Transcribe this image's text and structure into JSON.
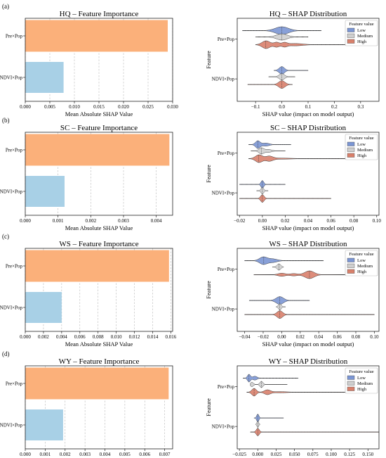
{
  "colors": {
    "low": "#7b96d4",
    "medium": "#cfcfcf",
    "high": "#d9806b",
    "bar_top": "#fbb07a",
    "bar_bottom": "#a8d0e6"
  },
  "chart_data": [
    {
      "panel_label": "(a)",
      "importance": {
        "type": "bar",
        "title": "HQ – Feature Importance",
        "xlabel": "Mean Absolute SHAP Value",
        "categories": [
          "Pre×Pop",
          "NDVI×Pop"
        ],
        "values": [
          0.029,
          0.0078
        ],
        "xlim": [
          0,
          0.03
        ],
        "ticks": [
          0,
          0.005,
          0.01,
          0.015,
          0.02,
          0.025,
          0.03
        ],
        "tick_labels": [
          "0.000",
          "0.005",
          "0.010",
          "0.015",
          "0.020",
          "0.025",
          "0.030"
        ],
        "grid": true
      },
      "shap": {
        "type": "violin",
        "title": "HQ – SHAP Distribution",
        "xlabel": "SHAP value (impact on model output)",
        "ylabel": "Feature",
        "categories": [
          "Pre×Pop",
          "NDVI×Pop"
        ],
        "xlim": [
          -0.17,
          0.37
        ],
        "ticks": [
          -0.1,
          0,
          0.1,
          0.2,
          0.3
        ],
        "tick_labels": [
          "−0.1",
          "0.0",
          "0.1",
          "0.2",
          "0.3"
        ],
        "legend": {
          "title": "Feature value",
          "entries": [
            "Low",
            "Medium",
            "High"
          ],
          "position": "top-right"
        },
        "features": [
          {
            "feature": "Pre×Pop",
            "groups": [
              {
                "name": "Low",
                "range": [
                  -0.15,
                  0.15
                ],
                "peaks": [
                  [
                    0,
                    0.025,
                    1
                  ]
                ]
              },
              {
                "name": "Medium",
                "range": [
                  -0.1,
                  0.1
                ],
                "peaks": [
                  [
                    0,
                    0.02,
                    1
                  ]
                ]
              },
              {
                "name": "High",
                "range": [
                  -0.1,
                  0.35
                ],
                "peaks": [
                  [
                    -0.06,
                    0.015,
                    1
                  ],
                  [
                    -0.02,
                    0.01,
                    0.6
                  ],
                  [
                    0.01,
                    0.01,
                    0.5
                  ],
                  [
                    0.05,
                    0.03,
                    0.3
                  ]
                ]
              }
            ]
          },
          {
            "feature": "NDVI×Pop",
            "groups": [
              {
                "name": "Low",
                "range": [
                  -0.03,
                  0.1
                ],
                "peaks": [
                  [
                    0,
                    0.01,
                    1
                  ]
                ]
              },
              {
                "name": "Medium",
                "range": [
                  -0.05,
                  0.05
                ],
                "peaks": [
                  [
                    0,
                    0.01,
                    1
                  ]
                ]
              },
              {
                "name": "High",
                "range": [
                  -0.13,
                  0.04
                ],
                "peaks": [
                  [
                    0,
                    0.012,
                    1
                  ]
                ]
              }
            ]
          }
        ]
      }
    },
    {
      "panel_label": "(b)",
      "importance": {
        "type": "bar",
        "title": "SC – Feature Importance",
        "xlabel": "Mean Absolute SHAP Value",
        "categories": [
          "Pre×Pop",
          "NDVI×Pop"
        ],
        "values": [
          0.0044,
          0.0012
        ],
        "xlim": [
          0,
          0.0045
        ],
        "ticks": [
          0,
          0.001,
          0.002,
          0.003,
          0.004
        ],
        "tick_labels": [
          "0.000",
          "0.001",
          "0.002",
          "0.003",
          "0.004"
        ],
        "grid": true
      },
      "shap": {
        "type": "violin",
        "title": "SC – SHAP Distribution",
        "xlabel": "SHAP value (impact on model output)",
        "ylabel": "Feature",
        "categories": [
          "Pre×Pop",
          "NDVI×Pop"
        ],
        "xlim": [
          -0.022,
          0.102
        ],
        "ticks": [
          -0.02,
          0,
          0.02,
          0.04,
          0.06,
          0.08,
          0.1
        ],
        "tick_labels": [
          "−0.02",
          "0.00",
          "0.02",
          "0.04",
          "0.06",
          "0.08",
          "0.10"
        ],
        "legend": {
          "title": "Feature value",
          "entries": [
            "Low",
            "Medium",
            "High"
          ],
          "position": "top-right"
        },
        "features": [
          {
            "feature": "Pre×Pop",
            "groups": [
              {
                "name": "Low",
                "range": [
                  -0.012,
                  0.025
                ],
                "peaks": [
                  [
                    -0.004,
                    0.002,
                    1
                  ],
                  [
                    0.003,
                    0.003,
                    0.4
                  ]
                ]
              },
              {
                "name": "Medium",
                "range": [
                  -0.01,
                  0.02
                ],
                "peaks": [
                  [
                    -0.001,
                    0.002,
                    1
                  ],
                  [
                    0.005,
                    0.003,
                    0.5
                  ]
                ]
              },
              {
                "name": "High",
                "range": [
                  -0.012,
                  0.1
                ],
                "peaks": [
                  [
                    -0.003,
                    0.003,
                    1
                  ],
                  [
                    0.006,
                    0.003,
                    0.6
                  ],
                  [
                    0.015,
                    0.01,
                    0.15
                  ]
                ]
              }
            ]
          },
          {
            "feature": "NDVI×Pop",
            "groups": [
              {
                "name": "Low",
                "range": [
                  -0.02,
                  0.02
                ],
                "peaks": [
                  [
                    0,
                    0.0012,
                    1
                  ]
                ]
              },
              {
                "name": "Medium",
                "range": [
                  -0.005,
                  0.005
                ],
                "peaks": [
                  [
                    0,
                    0.0012,
                    1
                  ]
                ]
              },
              {
                "name": "High",
                "range": [
                  -0.02,
                  0.06
                ],
                "peaks": [
                  [
                    0,
                    0.0015,
                    1
                  ]
                ]
              }
            ]
          }
        ]
      }
    },
    {
      "panel_label": "(c)",
      "importance": {
        "type": "bar",
        "title": "WS – Feature Importance",
        "xlabel": "Mean Absolute SHAP Value",
        "categories": [
          "Pre×Pop",
          "NDVI×Pop"
        ],
        "values": [
          0.0158,
          0.004
        ],
        "xlim": [
          0,
          0.0162
        ],
        "ticks": [
          0,
          0.002,
          0.004,
          0.006,
          0.008,
          0.01,
          0.012,
          0.014,
          0.016
        ],
        "tick_labels": [
          "0.000",
          "0.002",
          "0.004",
          "0.006",
          "0.008",
          "0.010",
          "0.012",
          "0.014",
          "0.016"
        ],
        "grid": true
      },
      "shap": {
        "type": "violin",
        "title": "WS – SHAP Distribution",
        "xlabel": "SHAP value (impact on model output)",
        "ylabel": "Feature",
        "categories": [
          "Pre×Pop",
          "NDVI×Pop"
        ],
        "xlim": [
          -0.048,
          0.105
        ],
        "ticks": [
          -0.04,
          -0.02,
          0,
          0.02,
          0.04,
          0.06,
          0.08,
          0.1
        ],
        "tick_labels": [
          "−0.04",
          "−0.02",
          "0.00",
          "0.02",
          "0.04",
          "0.06",
          "0.08",
          "0.10"
        ],
        "legend": {
          "title": "Feature value",
          "entries": [
            "Low",
            "Medium",
            "High"
          ],
          "position": "top-right"
        },
        "features": [
          {
            "feature": "Pre×Pop",
            "groups": [
              {
                "name": "Low",
                "range": [
                  -0.04,
                  0.045
                ],
                "peaks": [
                  [
                    -0.02,
                    0.004,
                    1
                  ],
                  [
                    -0.01,
                    0.005,
                    0.5
                  ]
                ]
              },
              {
                "name": "Medium",
                "range": [
                  -0.01,
                  0.002
                ],
                "peaks": [
                  [
                    -0.003,
                    0.002,
                    1
                  ]
                ]
              },
              {
                "name": "High",
                "range": [
                  -0.03,
                  0.075
                ],
                "peaks": [
                  [
                    0,
                    0.004,
                    0.4
                  ],
                  [
                    0.013,
                    0.004,
                    0.3
                  ],
                  [
                    0.03,
                    0.005,
                    1
                  ]
                ]
              }
            ]
          },
          {
            "feature": "NDVI×Pop",
            "groups": [
              {
                "name": "Low",
                "range": [
                  -0.035,
                  0.03
                ],
                "peaks": [
                  [
                    -0.002,
                    0.004,
                    1
                  ]
                ]
              },
              {
                "name": "Medium",
                "range": [
                  -0.006,
                  0.004
                ],
                "peaks": [
                  [
                    -0.002,
                    0.0015,
                    1
                  ]
                ]
              },
              {
                "name": "High",
                "range": [
                  -0.04,
                  0.1
                ],
                "peaks": [
                  [
                    -0.002,
                    0.003,
                    1
                  ]
                ]
              }
            ]
          }
        ]
      }
    },
    {
      "panel_label": "(d)",
      "importance": {
        "type": "bar",
        "title": "WY – Feature Importance",
        "xlabel": "Mean Absolute SHAP Value",
        "categories": [
          "Pre×Pop",
          "NDVI×Pop"
        ],
        "values": [
          0.0072,
          0.0019
        ],
        "xlim": [
          0,
          0.0074
        ],
        "ticks": [
          0,
          0.001,
          0.002,
          0.003,
          0.004,
          0.005,
          0.006,
          0.007
        ],
        "tick_labels": [
          "0.000",
          "0.001",
          "0.002",
          "0.003",
          "0.004",
          "0.005",
          "0.006",
          "0.007"
        ],
        "grid": true
      },
      "shap": {
        "type": "violin",
        "title": "WY – SHAP Distribution",
        "xlabel": "SHAP value (impact on model output)",
        "ylabel": "Feature",
        "categories": [
          "Pre×Pop",
          "NDVI×Pop"
        ],
        "xlim": [
          -0.028,
          0.165
        ],
        "ticks": [
          -0.025,
          0,
          0.025,
          0.05,
          0.075,
          0.1,
          0.125,
          0.15
        ],
        "tick_labels": [
          "−0.025",
          "0.000",
          "0.025",
          "0.050",
          "0.075",
          "0.100",
          "0.125",
          "0.150"
        ],
        "legend": {
          "title": "Feature value",
          "entries": [
            "Low",
            "Medium",
            "High"
          ],
          "position": "top-right"
        },
        "features": [
          {
            "feature": "Pre×Pop",
            "groups": [
              {
                "name": "Low",
                "range": [
                  -0.02,
                  0.055
                ],
                "peaks": [
                  [
                    -0.012,
                    0.002,
                    1
                  ],
                  [
                    -0.004,
                    0.003,
                    0.5
                  ]
                ]
              },
              {
                "name": "Medium",
                "range": [
                  -0.01,
                  0.04
                ],
                "peaks": [
                  [
                    -0.008,
                    0.002,
                    0.7
                  ],
                  [
                    0.005,
                    0.002,
                    1
                  ]
                ]
              },
              {
                "name": "High",
                "range": [
                  -0.015,
                  0.16
                ],
                "peaks": [
                  [
                    -0.005,
                    0.003,
                    1
                  ],
                  [
                    0.013,
                    0.004,
                    0.6
                  ],
                  [
                    0.03,
                    0.01,
                    0.15
                  ]
                ]
              }
            ]
          },
          {
            "feature": "NDVI×Pop",
            "groups": [
              {
                "name": "Low",
                "range": [
                  -0.005,
                  0.035
                ],
                "peaks": [
                  [
                    0,
                    0.0015,
                    1
                  ]
                ]
              },
              {
                "name": "Medium",
                "range": [
                  -0.003,
                  0.003
                ],
                "peaks": [
                  [
                    0,
                    0.0012,
                    1
                  ]
                ]
              },
              {
                "name": "High",
                "range": [
                  -0.01,
                  0.165
                ],
                "peaks": [
                  [
                    0,
                    0.002,
                    1
                  ]
                ]
              }
            ]
          }
        ]
      }
    }
  ]
}
